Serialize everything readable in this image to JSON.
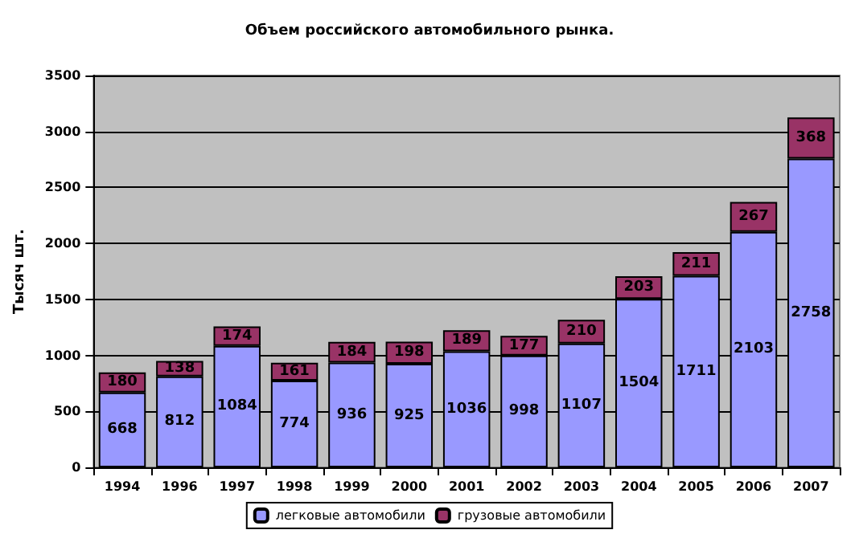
{
  "chart_data": {
    "type": "bar",
    "title": "Объем российского автомобильного рынка.",
    "ylabel": "Тысяч шт.",
    "categories": [
      "1994",
      "1996",
      "1997",
      "1998",
      "1999",
      "2000",
      "2001",
      "2002",
      "2003",
      "2004",
      "2005",
      "2006",
      "2007"
    ],
    "series": [
      {
        "name": "легковые автомобили",
        "color": "#9999ff",
        "values": [
          668,
          812,
          1084,
          774,
          936,
          925,
          1036,
          998,
          1107,
          1504,
          1711,
          2103,
          2758
        ]
      },
      {
        "name": "грузовые автомобили",
        "color": "#993366",
        "values": [
          180,
          138,
          174,
          161,
          184,
          198,
          189,
          177,
          210,
          203,
          211,
          267,
          368
        ]
      }
    ],
    "stacked": true,
    "ylim": [
      0,
      3500
    ],
    "yticks": [
      0,
      500,
      1000,
      1500,
      2000,
      2500,
      3000,
      3500
    ],
    "grid": "y",
    "legend": "bottom",
    "data_labels": true
  }
}
